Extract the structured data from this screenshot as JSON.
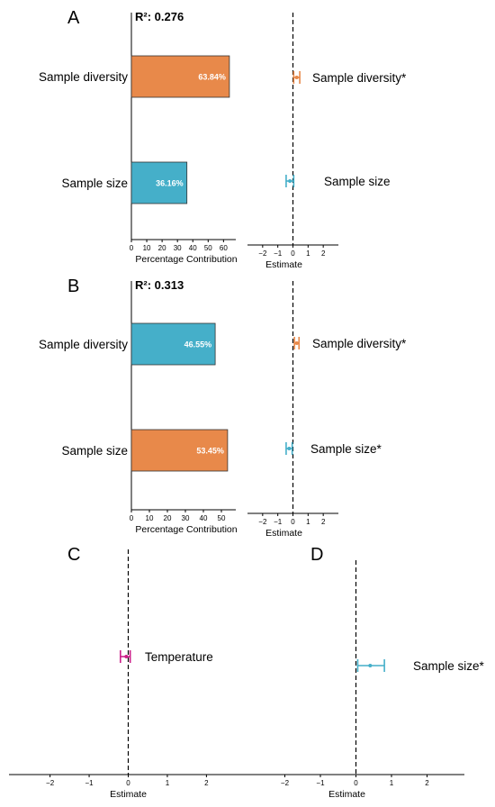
{
  "chart_data": [
    {
      "panel": "A",
      "type": "bar",
      "orientation": "horizontal",
      "r2_label": "R²: 0.276",
      "categories": [
        "Sample diversity",
        "Sample size"
      ],
      "values": [
        63.84,
        36.16
      ],
      "value_labels": [
        "63.84%",
        "36.16%"
      ],
      "colors": [
        "#E8894A",
        "#45AFC9"
      ],
      "xlabel": "Percentage Contribution",
      "xlim": [
        0,
        68
      ],
      "xticks": [
        0,
        10,
        20,
        30,
        40,
        50,
        60
      ]
    },
    {
      "panel": "A",
      "type": "scatter",
      "subtype": "coefficient",
      "labels": [
        "Sample diversity*",
        "Sample size"
      ],
      "estimates": [
        0.25,
        -0.2
      ],
      "ci_low": [
        0.05,
        -0.45
      ],
      "ci_high": [
        0.45,
        0.05
      ],
      "colors": [
        "#E8894A",
        "#45AFC9"
      ],
      "xlabel": "Estimate",
      "xlim": [
        -3,
        3
      ],
      "xticks": [
        -2,
        -1,
        0,
        1,
        2
      ],
      "reference_line": 0
    },
    {
      "panel": "B",
      "type": "bar",
      "orientation": "horizontal",
      "r2_label": "R²: 0.313",
      "categories": [
        "Sample diversity",
        "Sample size"
      ],
      "values": [
        46.55,
        53.45
      ],
      "value_labels": [
        "46.55%",
        "53.45%"
      ],
      "colors": [
        "#45AFC9",
        "#E8894A"
      ],
      "xlabel": "Percentage Contribution",
      "xlim": [
        0,
        58
      ],
      "xticks": [
        0,
        10,
        20,
        30,
        40,
        50
      ]
    },
    {
      "panel": "B",
      "type": "scatter",
      "subtype": "coefficient",
      "labels": [
        "Sample diversity*",
        "Sample size*"
      ],
      "estimates": [
        0.25,
        -0.25
      ],
      "ci_low": [
        0.1,
        -0.45
      ],
      "ci_high": [
        0.4,
        -0.05
      ],
      "colors": [
        "#E8894A",
        "#45AFC9"
      ],
      "xlabel": "Estimate",
      "xlim": [
        -3,
        3
      ],
      "xticks": [
        -2,
        -1,
        0,
        1,
        2
      ],
      "reference_line": 0
    },
    {
      "panel": "C",
      "type": "scatter",
      "subtype": "coefficient",
      "labels": [
        "Temperature"
      ],
      "estimates": [
        -0.05
      ],
      "ci_low": [
        -0.2
      ],
      "ci_high": [
        0.05
      ],
      "colors": [
        "#CC1F8A"
      ],
      "xlabel": "Estimate",
      "xlim": [
        -3.05,
        3.05
      ],
      "xticks": [
        -2,
        -1,
        0,
        1,
        2
      ],
      "reference_line": 0
    },
    {
      "panel": "D",
      "type": "scatter",
      "subtype": "coefficient",
      "labels": [
        "Sample size*"
      ],
      "estimates": [
        0.4
      ],
      "ci_low": [
        0.05
      ],
      "ci_high": [
        0.8
      ],
      "colors": [
        "#45AFC9"
      ],
      "xlabel": "Estimate",
      "xlim": [
        -3.05,
        3.05
      ],
      "xticks": [
        -2,
        -1,
        0,
        1,
        2
      ],
      "reference_line": 0
    }
  ]
}
